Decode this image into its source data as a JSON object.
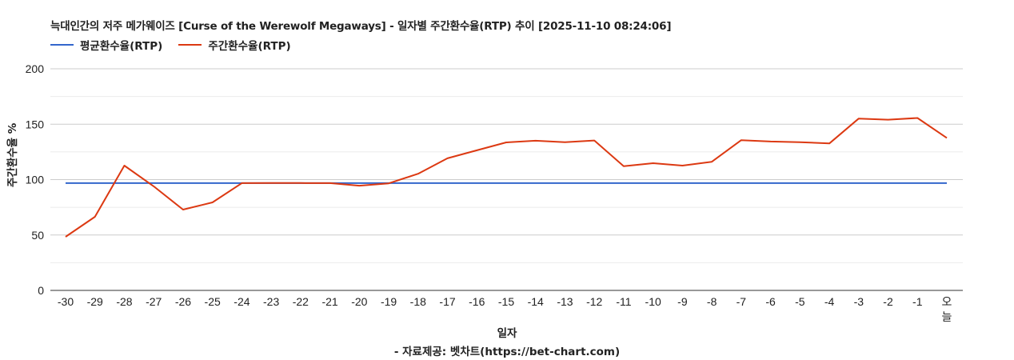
{
  "header": {
    "title": "늑대인간의 저주 메가웨이즈 [Curse of the Werewolf Megaways] - 일자별 주간환수율(RTP) 추이 [2025-11-10 08:24:06]"
  },
  "legend": {
    "items": [
      {
        "label": "평균환수율(RTP)",
        "color": "#3366cc"
      },
      {
        "label": "주간환수율(RTP)",
        "color": "#dc3912"
      }
    ]
  },
  "axes": {
    "y_title": "주간환수율 %",
    "x_title": "일자"
  },
  "footer": {
    "source": "- 자료제공: 벳차트(https://bet-chart.com)"
  },
  "colors": {
    "average_line": "#3366cc",
    "weekly_line": "#dc3912",
    "grid_major": "#cccccc",
    "grid_minor": "#ebebeb",
    "axis": "#333333"
  },
  "chart_data": {
    "type": "line",
    "title": "늑대인간의 저주 메가웨이즈 [Curse of the Werewolf Megaways] - 일자별 주간환수율(RTP) 추이 [2025-11-10 08:24:06]",
    "xlabel": "일자",
    "ylabel": "주간환수율 %",
    "ylim": [
      0,
      200
    ],
    "yticks": [
      0,
      50,
      100,
      150,
      200
    ],
    "grid": true,
    "legend_position": "top",
    "categories": [
      "-30",
      "-29",
      "-28",
      "-27",
      "-26",
      "-25",
      "-24",
      "-23",
      "-22",
      "-21",
      "-20",
      "-19",
      "-18",
      "-17",
      "-16",
      "-15",
      "-14",
      "-13",
      "-12",
      "-11",
      "-10",
      "-9",
      "-8",
      "-7",
      "-6",
      "-5",
      "-4",
      "-3",
      "-2",
      "-1",
      "오늘"
    ],
    "series": [
      {
        "name": "평균환수율(RTP)",
        "color": "#3366cc",
        "values": [
          96.8,
          96.8,
          96.8,
          96.8,
          96.8,
          96.8,
          96.8,
          96.8,
          96.8,
          96.8,
          96.8,
          96.8,
          96.8,
          96.8,
          96.8,
          96.8,
          96.8,
          96.8,
          96.8,
          96.8,
          96.8,
          96.8,
          96.8,
          96.8,
          96.8,
          96.8,
          96.8,
          96.8,
          96.8,
          96.8,
          96.8
        ]
      },
      {
        "name": "주간환수율(RTP)",
        "color": "#dc3912",
        "values": [
          48.4,
          66.4,
          112.6,
          93.9,
          72.9,
          79.4,
          96.8,
          96.9,
          96.9,
          96.8,
          94.5,
          96.6,
          105.3,
          119.2,
          126.4,
          133.6,
          135.1,
          133.8,
          135.3,
          112.1,
          114.8,
          112.6,
          116.1,
          135.6,
          134.4,
          133.8,
          132.6,
          155.1,
          154.1,
          155.6,
          137.6
        ]
      }
    ]
  }
}
